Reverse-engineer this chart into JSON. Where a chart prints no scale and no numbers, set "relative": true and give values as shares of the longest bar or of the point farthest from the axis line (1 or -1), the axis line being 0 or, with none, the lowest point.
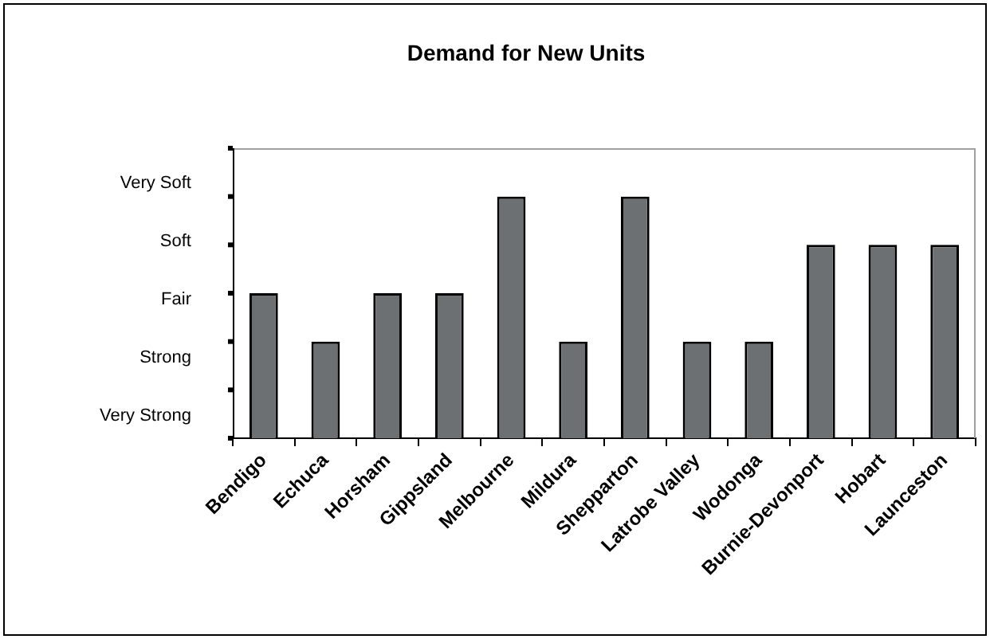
{
  "chart_data": {
    "type": "bar",
    "title": "Demand for New Units",
    "categories": [
      "Bendigo",
      "Echuca",
      "Horsham",
      "Gippsland",
      "Melbourne",
      "Mildura",
      "Shepparton",
      "Latrobe Valley",
      "Wodonga",
      "Burnie-Devonport",
      "Hobart",
      "Launceston"
    ],
    "values": [
      0.6,
      0.4,
      0.6,
      0.6,
      1,
      0.4,
      1,
      0.4,
      0.4,
      0.8,
      0.8,
      0.8
    ],
    "color": "#6d7073",
    "relative": true,
    "annotations": [
      "Very Soft",
      "Soft",
      "Fair",
      "Strong",
      "Very Strong"
    ],
    "grid": false,
    "legend": false
  }
}
